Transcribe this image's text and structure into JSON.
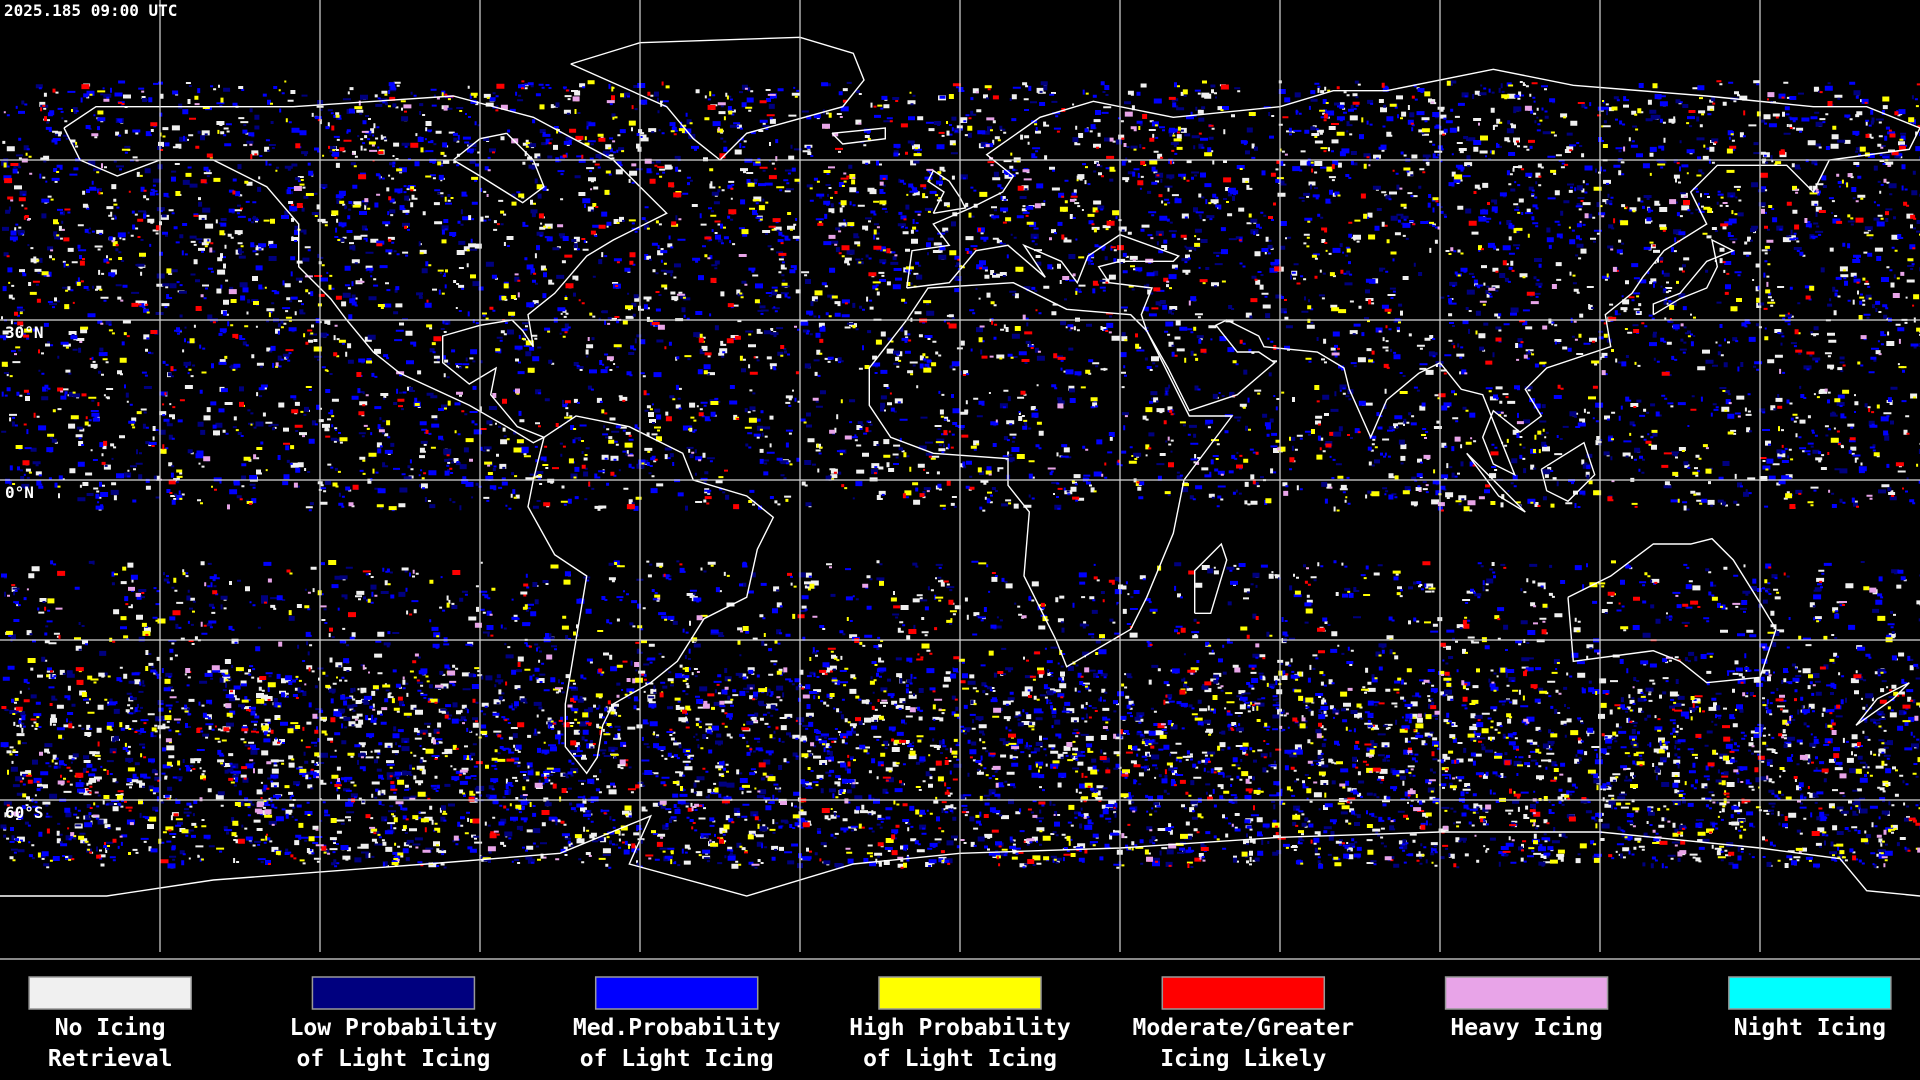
{
  "timestamp": "2025.185 09:00 UTC",
  "grid_labels": [
    "30°N",
    "0°N",
    "60°S"
  ],
  "legend": [
    {
      "lines": [
        "No Icing",
        "Retrieval"
      ],
      "color": "#f0f0f0"
    },
    {
      "lines": [
        "Low Probability",
        "of Light Icing"
      ],
      "color": "#00007f"
    },
    {
      "lines": [
        "Med.Probability",
        "of Light Icing"
      ],
      "color": "#0000ff"
    },
    {
      "lines": [
        "High Probability",
        "of Light Icing"
      ],
      "color": "#ffff00"
    },
    {
      "lines": [
        "Moderate/Greater",
        "Icing Likely"
      ],
      "color": "#ff0000"
    },
    {
      "lines": [
        "Heavy Icing"
      ],
      "color": "#e8a4e8"
    },
    {
      "lines": [
        "Night Icing"
      ],
      "color": "#00ffff"
    }
  ]
}
